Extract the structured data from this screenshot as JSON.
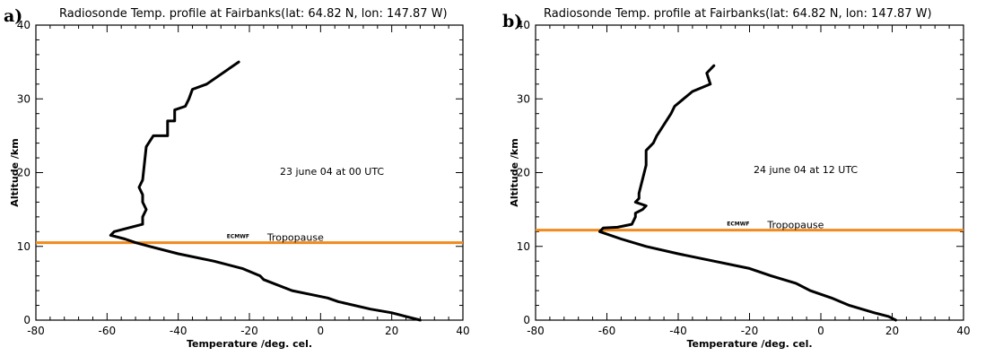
{
  "colors": {
    "profile": "#000000",
    "tropopause": "#f08a1c",
    "axis": "#000000"
  },
  "chart_data": [
    {
      "type": "line",
      "panel_label": "a)",
      "title": "Radiosonde Temp. profile at Fairbanks(lat: 64.82 N, lon: 147.87 W)",
      "xlabel": "Temperature /deg. cel.",
      "ylabel": "Altitude /km",
      "xlim": [
        -80,
        40
      ],
      "ylim": [
        0,
        40
      ],
      "xticks": [
        "-80",
        "-60",
        "-40",
        "-20",
        "0",
        "20",
        "40"
      ],
      "yticks": [
        "0",
        "10",
        "20",
        "30",
        "40"
      ],
      "annotation": "23 june 04 at 00 UTC",
      "tropopause": {
        "altitude": 10.5,
        "source_label": "ECMWF",
        "label": "Tropopause"
      },
      "series": [
        {
          "x": [
            28,
            24,
            20,
            14,
            5,
            2,
            -3,
            -8,
            -16,
            -17,
            -22,
            -30,
            -40,
            -48,
            -52,
            -55,
            -59,
            -58,
            -54,
            -50,
            -50,
            -49,
            -50,
            -50,
            -51,
            -50,
            -49,
            -47,
            -43,
            -43,
            -41,
            -41,
            -38,
            -37,
            -36,
            -32,
            -23
          ],
          "y": [
            0,
            0.5,
            1,
            1.5,
            2.5,
            3,
            3.5,
            4,
            5.5,
            6,
            7,
            8,
            9,
            10,
            10.5,
            11,
            11.5,
            12,
            12.5,
            13,
            14,
            15,
            16,
            17,
            18,
            19,
            23.5,
            25,
            25,
            27,
            27,
            28.5,
            29,
            30,
            31.3,
            32,
            35
          ]
        }
      ]
    },
    {
      "type": "line",
      "panel_label": "b)",
      "title": "Radiosonde Temp. profile at Fairbanks(lat: 64.82 N, lon: 147.87 W)",
      "xlabel": "Temperature /deg. cel.",
      "ylabel": "Altitude /km",
      "xlim": [
        -80,
        40
      ],
      "ylim": [
        0,
        40
      ],
      "xticks": [
        "-80",
        "-60",
        "-40",
        "-20",
        "0",
        "20",
        "40"
      ],
      "yticks": [
        "0",
        "10",
        "20",
        "30",
        "40"
      ],
      "annotation": "24 june 04 at 12 UTC",
      "tropopause": {
        "altitude": 12.2,
        "source_label": "ECMWF",
        "label": "Tropopause"
      },
      "series": [
        {
          "x": [
            21,
            19,
            15,
            8,
            3,
            0,
            -3,
            -7,
            -14,
            -20,
            -30,
            -40,
            -49,
            -56,
            -62,
            -61,
            -57,
            -53,
            -52,
            -52,
            -50,
            -49,
            -52,
            -51,
            -51,
            -51,
            -49,
            -49,
            -47,
            -46,
            -42,
            -41,
            -36,
            -31,
            -32,
            -30
          ],
          "y": [
            0,
            0.5,
            1,
            2,
            3,
            3.5,
            4,
            5,
            6,
            7,
            8,
            9,
            10,
            11,
            12,
            12.5,
            12.6,
            13,
            14,
            14.5,
            15,
            15.5,
            16,
            16.5,
            17,
            17.2,
            21,
            23,
            24,
            25,
            28,
            29,
            31,
            32,
            33.5,
            34.5
          ]
        }
      ]
    }
  ]
}
